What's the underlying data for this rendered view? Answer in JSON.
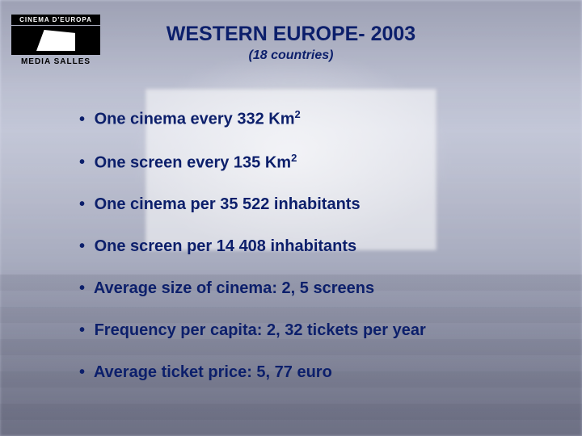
{
  "logo": {
    "top_text": "CINEMA D'EUROPA",
    "bottom_text": "MEDIA SALLES"
  },
  "title": "WESTERN EUROPE- 2003",
  "subtitle": "(18 countries)",
  "bullets": [
    {
      "pre": "One cinema every 332 Km",
      "sup": "2",
      "post": ""
    },
    {
      "pre": "One screen every 135 Km",
      "sup": "2",
      "post": ""
    },
    {
      "pre": "One cinema per 35 522 inhabitants",
      "sup": "",
      "post": ""
    },
    {
      "pre": "One screen per 14 408 inhabitants",
      "sup": "",
      "post": ""
    },
    {
      "pre": "Average size of cinema: 2, 5 screens",
      "sup": "",
      "post": ""
    },
    {
      "pre": "Frequency per capita: 2, 32 tickets per year",
      "sup": "",
      "post": ""
    },
    {
      "pre": "Average ticket price: 5, 77 euro",
      "sup": "",
      "post": ""
    }
  ],
  "colors": {
    "text": "#0c1f6b",
    "logo_bg": "#000000",
    "logo_fg": "#ffffff"
  }
}
